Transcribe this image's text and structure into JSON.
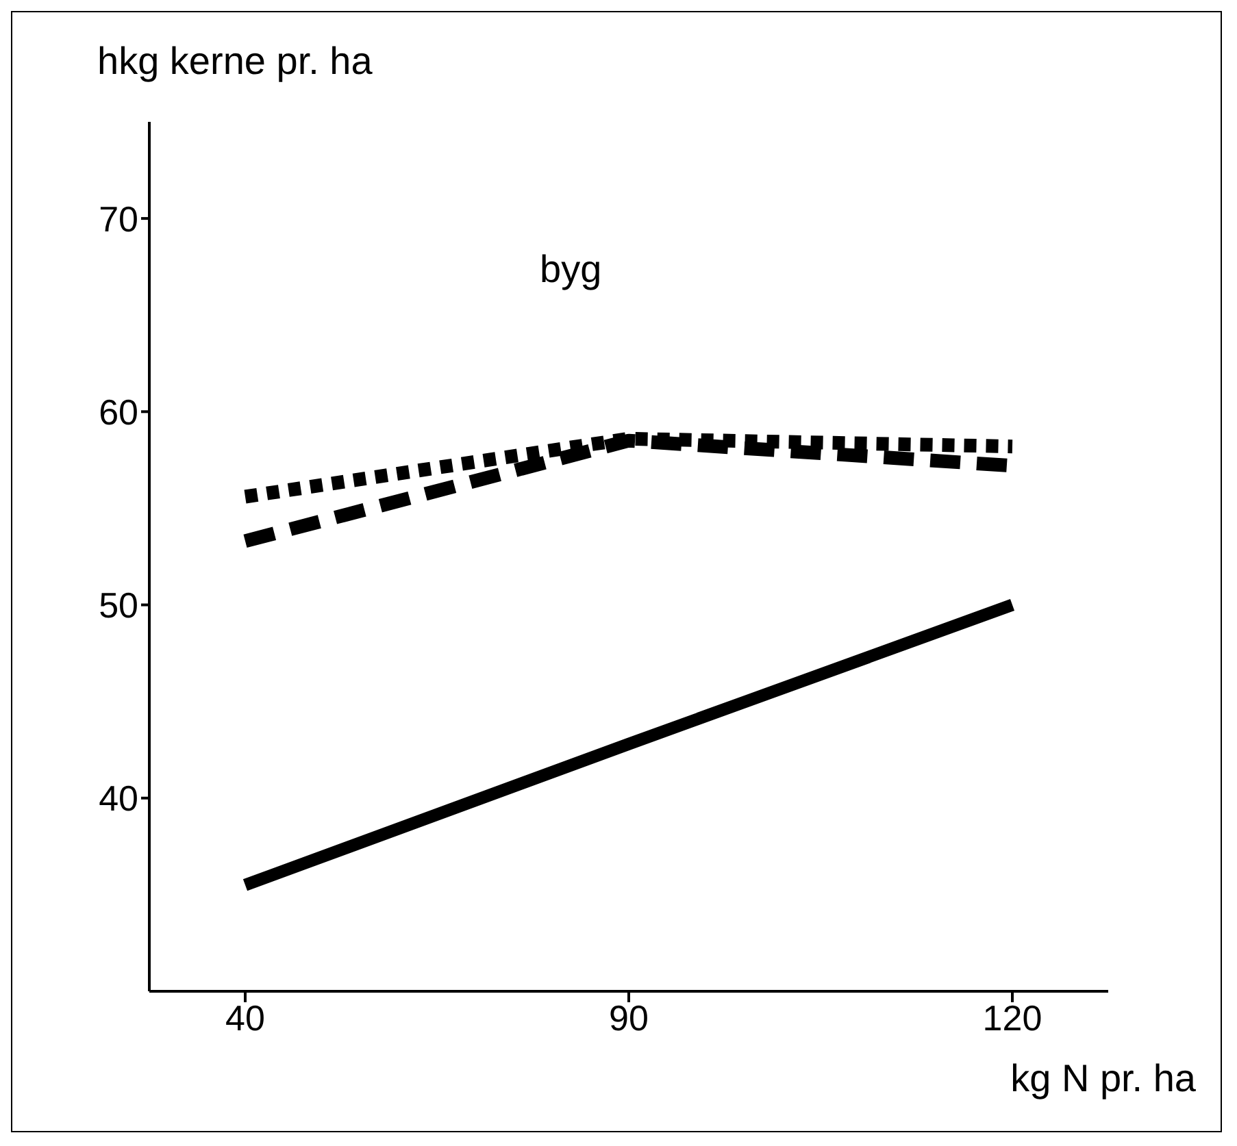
{
  "chart_data": {
    "type": "line",
    "ylabel": "hkg kerne pr. ha",
    "xlabel": "kg N pr. ha",
    "annotations": [
      "byg"
    ],
    "categories": [
      "40",
      "90",
      "120"
    ],
    "ylim": [
      30,
      75
    ],
    "yticks": [
      40,
      50,
      60,
      70
    ],
    "grid": false,
    "legend": false,
    "marker": "none",
    "series": [
      {
        "color": "#000000",
        "line_style": "solid",
        "values": [
          35.5,
          42.8,
          50
        ]
      },
      {
        "color": "#000000",
        "line_style": "dotted",
        "values": [
          55.6,
          58.6,
          58.2
        ]
      },
      {
        "color": "#000000",
        "line_style": "dashed",
        "values": [
          53.3,
          58.5,
          57.2
        ]
      }
    ]
  }
}
